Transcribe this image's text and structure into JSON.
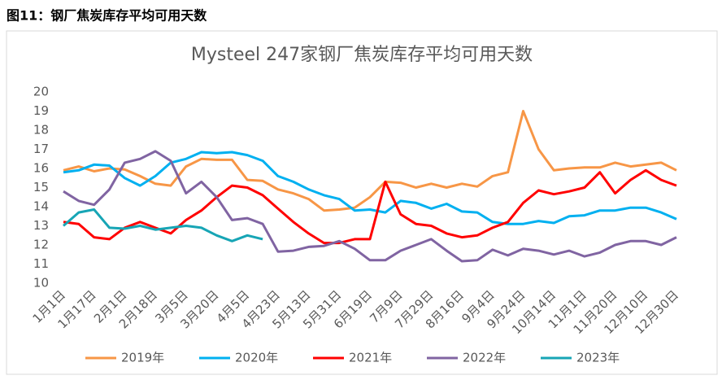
{
  "caption": "图11：钢厂焦炭库存平均可用天数",
  "chart_data": {
    "type": "line",
    "title": "Mysteel 247家钢厂焦炭库存平均可用天数",
    "categories": [
      "1月1日",
      null,
      "1月17日",
      null,
      "2月1日",
      null,
      "2月18日",
      null,
      "3月5日",
      null,
      "3月20日",
      null,
      "4月5日",
      null,
      "4月23日",
      null,
      "5月13日",
      null,
      "5月31日",
      null,
      "6月19日",
      null,
      "7月9日",
      null,
      "7月29日",
      null,
      "8月16日",
      null,
      "9月4日",
      null,
      "9月24日",
      null,
      "10月14日",
      null,
      "11月1日",
      null,
      "11月20日",
      null,
      "12月10日",
      null,
      "12月30日"
    ],
    "ylim": [
      10,
      20
    ],
    "yticks": [
      10,
      11,
      12,
      13,
      14,
      15,
      16,
      17,
      18,
      19,
      20
    ],
    "grid": false,
    "legend": "bottom",
    "series": [
      {
        "name": "2019年",
        "color": "#f79646",
        "values": [
          15.9,
          16.1,
          15.85,
          16.0,
          15.95,
          15.6,
          15.2,
          15.1,
          16.1,
          16.5,
          16.45,
          16.45,
          15.4,
          15.35,
          14.9,
          14.7,
          14.4,
          13.8,
          13.85,
          13.95,
          14.5,
          15.3,
          15.25,
          15.0,
          15.2,
          15.0,
          15.2,
          15.05,
          15.6,
          15.8,
          19.0,
          17.0,
          15.9,
          16.0,
          16.05,
          16.05,
          16.3,
          16.1,
          16.2,
          16.3,
          15.9
        ]
      },
      {
        "name": "2020年",
        "color": "#00b0f0",
        "values": [
          15.8,
          15.9,
          16.2,
          16.15,
          15.5,
          15.1,
          15.6,
          16.3,
          16.5,
          16.85,
          16.8,
          16.85,
          16.7,
          16.4,
          15.6,
          15.3,
          14.9,
          14.6,
          14.4,
          13.8,
          13.85,
          13.7,
          14.3,
          14.2,
          13.9,
          14.15,
          13.75,
          13.7,
          13.2,
          13.1,
          13.1,
          13.25,
          13.15,
          13.5,
          13.55,
          13.8,
          13.8,
          13.95,
          13.95,
          13.7,
          13.35
        ]
      },
      {
        "name": "2021年",
        "color": "#ff0000",
        "values": [
          13.2,
          13.1,
          12.4,
          12.3,
          12.9,
          13.2,
          12.9,
          12.6,
          13.3,
          13.8,
          14.5,
          15.1,
          15.0,
          14.6,
          13.9,
          13.2,
          12.6,
          12.1,
          12.1,
          12.3,
          12.3,
          15.3,
          13.6,
          13.1,
          13.0,
          12.6,
          12.4,
          12.5,
          12.9,
          13.2,
          14.2,
          14.85,
          14.65,
          14.8,
          15.0,
          15.8,
          14.7,
          15.4,
          15.9,
          15.4,
          15.1
        ]
      },
      {
        "name": "2022年",
        "color": "#8064a2",
        "values": [
          14.8,
          14.3,
          14.1,
          14.9,
          16.3,
          16.5,
          16.9,
          16.4,
          14.7,
          15.3,
          14.5,
          13.3,
          13.4,
          13.1,
          11.65,
          11.7,
          11.9,
          11.95,
          12.2,
          11.8,
          11.2,
          11.2,
          11.7,
          12.0,
          12.3,
          11.7,
          11.15,
          11.2,
          11.75,
          11.45,
          11.8,
          11.7,
          11.5,
          11.7,
          11.4,
          11.6,
          12.0,
          12.2,
          12.2,
          12.0,
          12.4
        ]
      },
      {
        "name": "2023年",
        "color": "#17a5b5",
        "values": [
          13.0,
          13.7,
          13.85,
          12.9,
          12.85,
          13.0,
          12.8,
          12.9,
          13.0,
          12.9,
          12.5,
          12.2,
          12.5,
          12.3,
          null,
          null,
          null,
          null,
          null,
          null,
          null,
          null,
          null,
          null,
          null,
          null,
          null,
          null,
          null,
          null,
          null,
          null,
          null,
          null,
          null,
          null,
          null,
          null,
          null,
          null,
          null
        ]
      }
    ]
  }
}
